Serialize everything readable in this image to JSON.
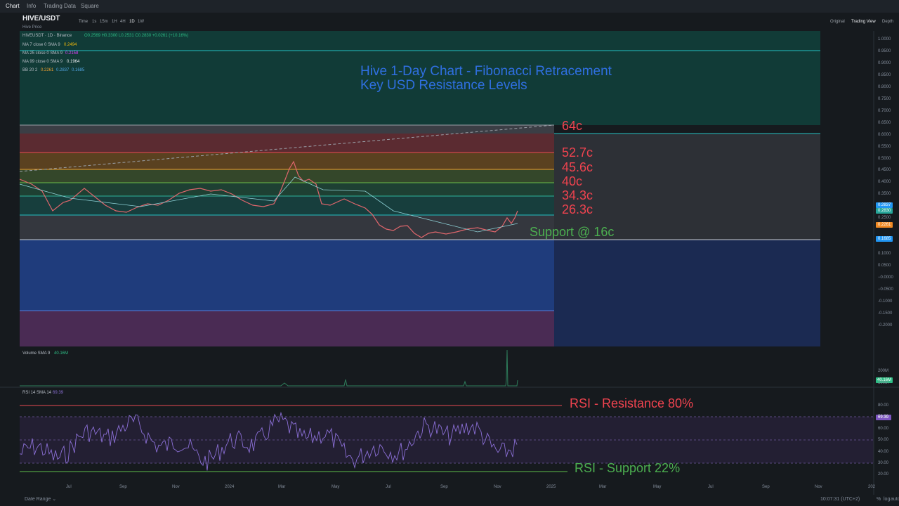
{
  "top_tabs": [
    "Chart",
    "Info",
    "Trading Data",
    "Square"
  ],
  "symbol": "HIVE/USDT",
  "symbol_sub": "Hive Price",
  "intervals": [
    "Time",
    "1s",
    "15m",
    "1H",
    "4H",
    "1D",
    "1W"
  ],
  "view_modes": [
    "Original",
    "Trading View",
    "Depth"
  ],
  "legend": {
    "main": "HIVEUSDT · 1D · Binance",
    "ohlc": "O0.2569 H0.3300 L0.2531 C0.2830 +0.0261 (+10.16%)",
    "ma": [
      {
        "label": "MA 7 close 0 SMA 9",
        "value": "0.2494"
      },
      {
        "label": "MA 25 close 0 SMA 9",
        "value": "0.2158"
      },
      {
        "label": "MA 99 close 0 SMA 9",
        "value": "0.1964"
      }
    ],
    "bb": {
      "label": "BB 20 2",
      "values": [
        "0.2261",
        "0.2837",
        "0.1685"
      ]
    }
  },
  "annotations": {
    "title": [
      "Hive 1-Day Chart - Fibonacci Retracement",
      "Key USD Resistance Levels"
    ],
    "levels": [
      "64c",
      "52.7c",
      "45.6c",
      "40c",
      "34.3c",
      "26.3c"
    ],
    "support": "Support @ 16c",
    "rsi_resistance": "RSI - Resistance 80%",
    "rsi_support": "RSI - Support 22%"
  },
  "price_axis": [
    "1.0000",
    "0.9500",
    "0.9000",
    "0.8500",
    "0.8000",
    "0.7500",
    "0.7000",
    "0.6500",
    "0.6000",
    "0.5500",
    "0.5000",
    "0.4500",
    "0.4000",
    "0.3500",
    "0.2500",
    "0.1000",
    "0.0500",
    "−0.0000",
    "−0.0500",
    "-0.1000",
    "-0.1500",
    "-0.2000"
  ],
  "price_badges": [
    "0.2837",
    "0.2830",
    "0.2261",
    "0.1685"
  ],
  "volume": {
    "label": "Volume SMA 9",
    "value": "40.16M",
    "axis": [
      "200M",
      "100M"
    ]
  },
  "rsi": {
    "label": "RSI 14 SMA 14",
    "value": "69.39",
    "axis": [
      "80.00",
      "70.00",
      "60.00",
      "50.00",
      "40.00",
      "30.00",
      "20.00"
    ]
  },
  "time_axis": [
    "Jul",
    "Sep",
    "Nov",
    "2024",
    "Mar",
    "May",
    "Jul",
    "Sep",
    "Nov",
    "2025",
    "Mar",
    "May",
    "Jul",
    "Sep",
    "Nov",
    "202"
  ],
  "bottom": {
    "date_range": "Date Range ⌄",
    "clock": "10:07:31 (UTC+2)",
    "opts": [
      "%",
      "log",
      "auto"
    ]
  }
}
